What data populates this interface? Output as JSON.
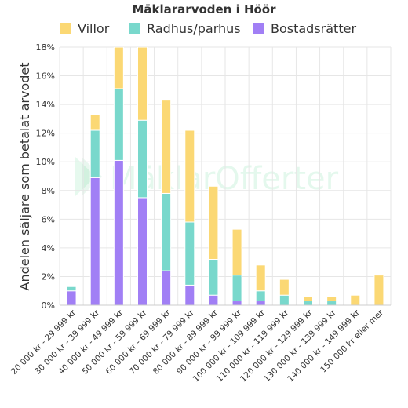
{
  "chart_data": {
    "type": "bar",
    "stacked": true,
    "title": "Mäklararvoden i Höör",
    "ylabel": "Andelen säljare som betalat arvodet",
    "xlabel": "",
    "ylim": [
      0,
      18
    ],
    "yticks": [
      0,
      2,
      4,
      6,
      8,
      10,
      12,
      14,
      16,
      18
    ],
    "ytick_suffix": "%",
    "grid": true,
    "legend_position": "top",
    "categories": [
      "20 000 kr - 29 999 kr",
      "30 000 kr - 39 999 kr",
      "40 000 kr - 49 999 kr",
      "50 000 kr - 59 999 kr",
      "60 000 kr - 69 999 kr",
      "70 000 kr - 79 999 kr",
      "80 000 kr - 89 999 kr",
      "90 000 kr - 99 999 kr",
      "100 000 kr - 109 999 kr",
      "110 000 kr - 119 999 kr",
      "120 000 kr - 129 999 kr",
      "130 000 kr - 139 999 kr",
      "140 000 kr - 149 999 kr",
      "150 000 kr eller mer"
    ],
    "series": [
      {
        "name": "Bostadsrätter",
        "color": "#a17ff5",
        "values": [
          1.0,
          8.9,
          10.1,
          7.5,
          2.4,
          1.4,
          0.7,
          0.3,
          0.3,
          0,
          0,
          0,
          0,
          0
        ]
      },
      {
        "name": "Radhus/parhus",
        "color": "#79d8cc",
        "values": [
          0.3,
          3.3,
          5.0,
          5.4,
          5.4,
          4.4,
          2.5,
          1.8,
          0.7,
          0.7,
          0.3,
          0.3,
          0,
          0
        ]
      },
      {
        "name": "Villor",
        "color": "#fbd874",
        "values": [
          0,
          1.1,
          2.9,
          5.1,
          6.5,
          6.4,
          5.1,
          3.2,
          1.8,
          1.1,
          0.3,
          0.3,
          0.7,
          2.1
        ]
      }
    ],
    "legend_order": [
      "Villor",
      "Radhus/parhus",
      "Bostadsrätter"
    ]
  },
  "watermark": {
    "text": "MäklarOfferter"
  }
}
